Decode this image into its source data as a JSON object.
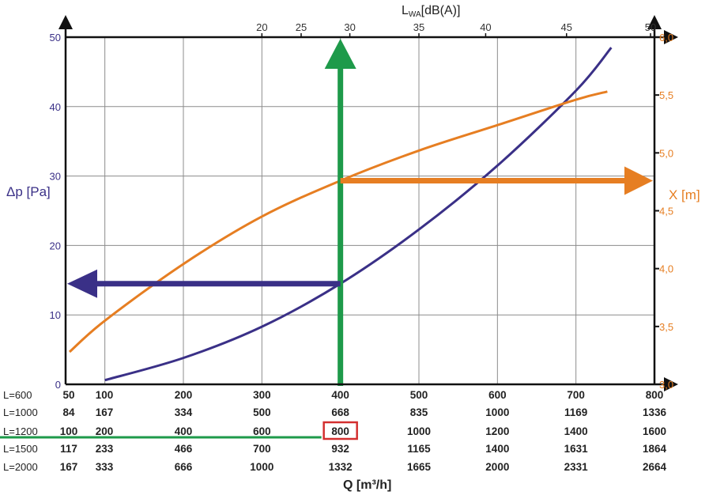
{
  "chart_data": {
    "type": "line",
    "x_label": "Q [m³/h]",
    "left_axis": {
      "label": "Δp [Pa]",
      "range": [
        0,
        50
      ],
      "ticks": [
        0,
        10,
        20,
        30,
        40,
        50
      ]
    },
    "right_axis": {
      "label": "X [m]",
      "range": [
        3.0,
        6.0
      ],
      "ticks": [
        "3,0",
        "3,5",
        "4,0",
        "4,5",
        "5,0",
        "5,5",
        "6,0"
      ]
    },
    "top_axis": {
      "label_main": "L",
      "label_sub": "WA",
      "label_rest": "[dB(A)]",
      "ticks": [
        {
          "label": "20",
          "q": 300
        },
        {
          "label": "25",
          "q": 350
        },
        {
          "label": "30",
          "q": 412
        },
        {
          "label": "35",
          "q": 500
        },
        {
          "label": "40",
          "q": 585
        },
        {
          "label": "45",
          "q": 688
        },
        {
          "label": "50",
          "q": 795
        }
      ]
    },
    "x_range": [
      50,
      800
    ],
    "x_grid": [
      100,
      200,
      300,
      400,
      500,
      600,
      700,
      800
    ],
    "series": [
      {
        "color": "#3a3087",
        "axis": "left",
        "points": [
          [
            100,
            0.6
          ],
          [
            200,
            3.8
          ],
          [
            300,
            8.3
          ],
          [
            400,
            14.5
          ],
          [
            500,
            22.3
          ],
          [
            600,
            31.5
          ],
          [
            700,
            42.3
          ],
          [
            745,
            48.5
          ]
        ]
      },
      {
        "color": "#e67e22",
        "axis": "right",
        "points": [
          [
            55,
            3.28
          ],
          [
            100,
            3.55
          ],
          [
            200,
            4.04
          ],
          [
            300,
            4.45
          ],
          [
            400,
            4.76
          ],
          [
            500,
            5.02
          ],
          [
            600,
            5.24
          ],
          [
            700,
            5.46
          ],
          [
            740,
            5.53
          ]
        ]
      }
    ],
    "table": {
      "rows": [
        {
          "label": "L=600",
          "values": [
            "50",
            "100",
            "200",
            "300",
            "400",
            "500",
            "600",
            "700",
            "800"
          ]
        },
        {
          "label": "L=1000",
          "values": [
            "84",
            "167",
            "334",
            "500",
            "668",
            "835",
            "1000",
            "1169",
            "1336"
          ]
        },
        {
          "label": "L=1200",
          "values": [
            "100",
            "200",
            "400",
            "600",
            "800",
            "1000",
            "1200",
            "1400",
            "1600"
          ]
        },
        {
          "label": "L=1500",
          "values": [
            "117",
            "233",
            "466",
            "700",
            "932",
            "1165",
            "1400",
            "1631",
            "1864"
          ]
        },
        {
          "label": "L=2000",
          "values": [
            "167",
            "333",
            "666",
            "1000",
            "1332",
            "1665",
            "2000",
            "2331",
            "2664"
          ]
        }
      ],
      "highlight": {
        "row": 2,
        "col": 4
      }
    },
    "example": {
      "q": 400,
      "dp": 14.5,
      "x": 4.76,
      "color_q": "#1e9a4a",
      "color_dp": "#3a3087",
      "color_x": "#e67e22"
    },
    "colors": {
      "grid": "#8c8c8c",
      "frame": "#111111",
      "highlight_box": "#d32f2f"
    }
  }
}
